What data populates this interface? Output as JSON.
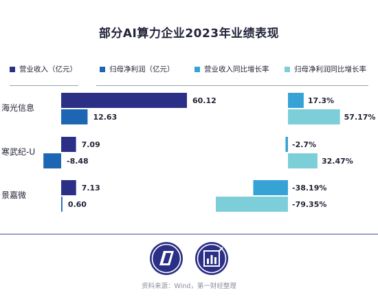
{
  "title": "部分AI算力企业2023年业绩表现",
  "source": "资料来源：Wind，第一财经整理",
  "logos": [
    "yicai-logo-icon",
    "data-news-logo-icon"
  ],
  "colors": {
    "revenue": "#2b2f86",
    "net_profit": "#1d66b4",
    "revenue_growth": "#36a2d6",
    "profit_growth": "#7ccfd9"
  },
  "chart_data": [
    {
      "type": "bar",
      "orientation": "horizontal",
      "categories": [
        "海光信息",
        "寒武纪-U",
        "景嘉微"
      ],
      "series": [
        {
          "name": "营业收入（亿元）",
          "values": [
            60.12,
            7.09,
            7.13
          ],
          "labels": [
            "60.12",
            "7.09",
            "7.13"
          ]
        },
        {
          "name": "归母净利润（亿元）",
          "values": [
            12.63,
            -8.48,
            0.6
          ],
          "labels": [
            "12.63",
            "-8.48",
            "0.60"
          ]
        }
      ]
    },
    {
      "type": "bar",
      "orientation": "horizontal",
      "categories": [
        "海光信息",
        "寒武纪-U",
        "景嘉微"
      ],
      "series": [
        {
          "name": "营业收入同比增长率",
          "values": [
            17.3,
            -2.7,
            -38.19
          ],
          "labels": [
            "17.3%",
            "-2.7%",
            "-38.19%"
          ]
        },
        {
          "name": "归母净利润同比增长率",
          "values": [
            57.17,
            32.47,
            -79.35
          ],
          "labels": [
            "57.17%",
            "32.47%",
            "-79.35%"
          ]
        }
      ]
    }
  ]
}
